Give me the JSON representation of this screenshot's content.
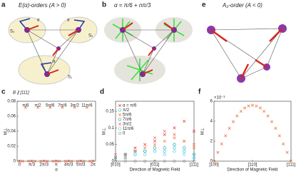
{
  "diagrams": {
    "a": {
      "panel_label": "a",
      "title": "E(α)-orders (A > 0)",
      "labels": [
        "S₁",
        "S₂",
        "S₃",
        "α",
        "α",
        "α"
      ]
    },
    "b": {
      "panel_label": "b",
      "title": "α = π/6 + nπ/3"
    },
    "e": {
      "panel_label": "e",
      "title": "A₂-order (A < 0)"
    }
  },
  "chart_data": [
    {
      "type": "scatter",
      "panel_label": "c",
      "title": "B ∥ [111]",
      "xlabel": "α",
      "ylabel": "M⊥",
      "xlim": [
        -0.2,
        6.5
      ],
      "ylim": [
        0,
        0.08
      ],
      "xticks": [
        {
          "value": 0,
          "label": "0"
        },
        {
          "value": 1.0472,
          "label": "π/3"
        },
        {
          "value": 2.0944,
          "label": "2π/3"
        },
        {
          "value": 3.1416,
          "label": "π"
        },
        {
          "value": 4.1888,
          "label": "4π/3"
        },
        {
          "value": 5.236,
          "label": "5π/3"
        },
        {
          "value": 6.2832,
          "label": "2π"
        }
      ],
      "yticks": [
        0,
        0.02,
        0.04,
        0.06,
        0.08
      ],
      "annotations": [
        {
          "text": "π/6",
          "x": 0.5236
        },
        {
          "text": "π/2",
          "x": 1.5708
        },
        {
          "text": "5π/6",
          "x": 2.618
        },
        {
          "text": "7π/6",
          "x": 3.6652
        },
        {
          "text": "3π/2",
          "x": 4.7124
        },
        {
          "text": "11π/6",
          "x": 5.7596
        }
      ],
      "series": [
        {
          "color": "#e8562a",
          "marker": "x",
          "x": [
            0.5236,
            1.5708,
            2.618,
            3.6652,
            4.7124,
            5.7596
          ],
          "values": [
            0.072,
            0.072,
            0.072,
            0.072,
            0.072,
            0.072
          ]
        },
        {
          "color": "#e8562a",
          "marker": "x",
          "x": [
            0,
            0.2618,
            0.7854,
            1.0472,
            1.309,
            1.8326,
            2.0944,
            2.3562,
            2.8798,
            3.1416,
            3.4034,
            3.927,
            4.1888,
            4.4506,
            4.9742,
            5.236,
            5.4978,
            6.0214,
            6.2832
          ],
          "values": [
            0,
            0,
            0,
            0,
            0,
            0,
            0,
            0,
            0,
            0,
            0,
            0,
            0,
            0,
            0,
            0,
            0,
            0,
            0
          ]
        }
      ]
    },
    {
      "type": "scatter",
      "panel_label": "d",
      "xlabel": "Direction of Magnetic Field",
      "ylabel": "M⊥",
      "xlim": [
        0,
        2
      ],
      "ylim": [
        0,
        0.18
      ],
      "xticks": [
        {
          "value": 0,
          "label": "[010]"
        },
        {
          "value": 1,
          "label": "[011]"
        },
        {
          "value": 2,
          "label": "[111]"
        }
      ],
      "yticks": [
        0,
        0.05,
        0.1,
        0.15
      ],
      "x": [
        0,
        0.25,
        0.5,
        0.75,
        1,
        1.25,
        1.5,
        1.75,
        2
      ],
      "series": [
        {
          "name": "α = π/6",
          "color": "#e8362a",
          "marker": "x",
          "values": [
            0.01,
            0.02,
            0.04,
            0.05,
            0.06,
            0.08,
            0.1,
            0.12,
            0.09
          ]
        },
        {
          "name": "π/2",
          "color": "#30c0d8",
          "marker": "o",
          "values": [
            0.01,
            0.02,
            0.03,
            0.03,
            0.03,
            0.03,
            0.04,
            0.03,
            0.01
          ]
        },
        {
          "name": "5π/6",
          "color": "#f07830",
          "marker": "x",
          "values": [
            0.01,
            0.01,
            0.03,
            0.04,
            0.05,
            0.06,
            0.07,
            0.06,
            0.04
          ]
        },
        {
          "name": "7π/6",
          "color": "#20a8b8",
          "marker": "o",
          "values": [
            0.01,
            0.02,
            0.02,
            0.03,
            0.04,
            0.04,
            0.05,
            0.04,
            0.02
          ]
        },
        {
          "name": "3π/2",
          "color": "#e86a5a",
          "marker": "x",
          "values": [
            0.02,
            0.02,
            0.03,
            0.05,
            0.07,
            0.09,
            0.08,
            0.06,
            0.05
          ]
        },
        {
          "name": "11π/6",
          "color": "#60d0e8",
          "marker": "o",
          "values": [
            0.01,
            0.01,
            0.02,
            0.02,
            0.03,
            0.02,
            0.03,
            0.02,
            0.01
          ]
        },
        {
          "name": "0",
          "color": "#999999",
          "marker": "o",
          "values": [
            0,
            0,
            0,
            0,
            0,
            0,
            0,
            0,
            0
          ]
        }
      ]
    },
    {
      "type": "scatter",
      "panel_label": "f",
      "xlabel": "Direction of Magnetic Field",
      "ylabel": "M⊥",
      "y_scale_label": "×10⁻³",
      "xlim": [
        0,
        2
      ],
      "ylim": [
        0,
        6
      ],
      "xticks": [
        {
          "value": 0,
          "label": "[100]"
        },
        {
          "value": 1,
          "label": "[110]"
        },
        {
          "value": 2,
          "label": "[111]"
        }
      ],
      "yticks": [
        0,
        2,
        4,
        6
      ],
      "x": [
        0,
        0.1,
        0.2,
        0.3,
        0.4,
        0.5,
        0.6,
        0.7,
        0.8,
        0.9,
        1,
        1.1,
        1.2,
        1.3,
        1.4,
        1.5,
        1.6,
        1.7,
        1.8,
        1.9,
        2
      ],
      "series": [
        {
          "color": "#e86a2a",
          "marker": "x",
          "values": [
            0,
            0.88,
            1.73,
            2.54,
            3.29,
            3.96,
            4.53,
            4.99,
            5.33,
            5.53,
            5.6,
            5.53,
            5.33,
            4.99,
            4.53,
            3.96,
            3.29,
            2.54,
            1.73,
            0.88,
            0
          ]
        }
      ]
    }
  ]
}
